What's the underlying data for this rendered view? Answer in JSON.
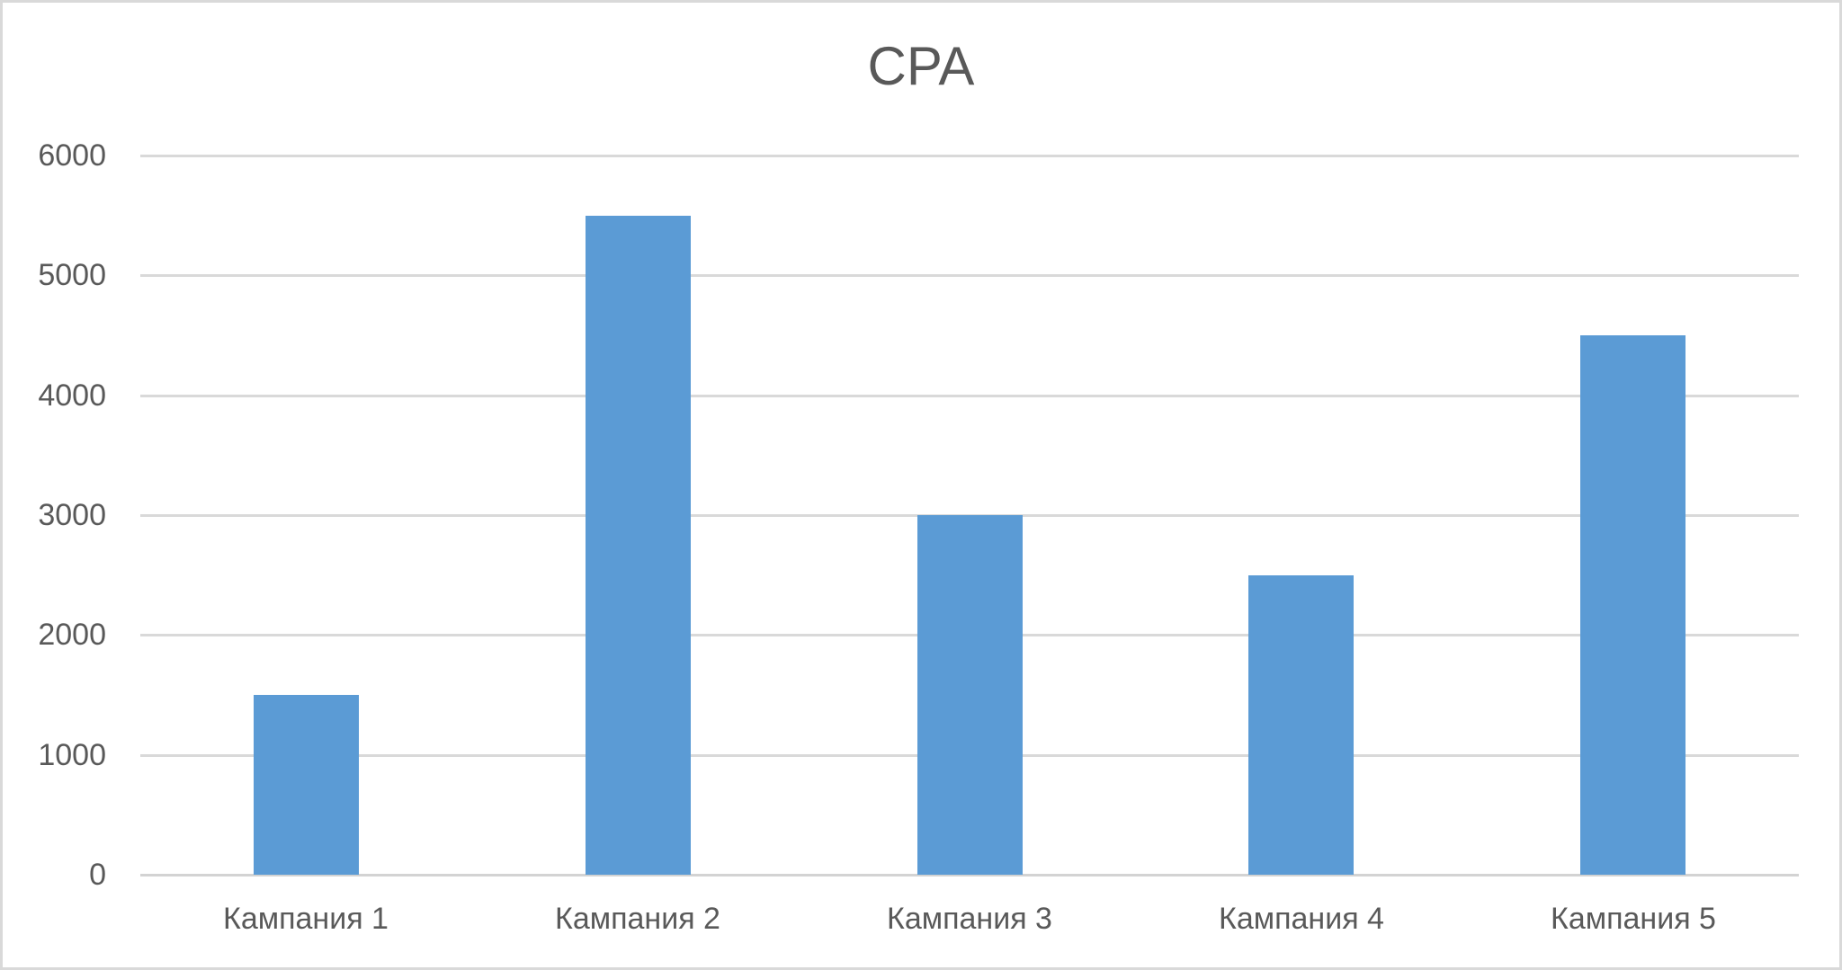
{
  "chart_data": {
    "type": "bar",
    "title": "CPA",
    "categories": [
      "Кампания 1",
      "Кампания 2",
      "Кампания 3",
      "Кампания 4",
      "Кампания 5"
    ],
    "values": [
      1500,
      5500,
      3000,
      2500,
      4500
    ],
    "xlabel": "",
    "ylabel": "",
    "ylim": [
      0,
      6000
    ],
    "yticks": [
      0,
      1000,
      2000,
      3000,
      4000,
      5000,
      6000
    ],
    "grid": true,
    "legend_position": "none",
    "colors": {
      "bar": "#5b9bd5",
      "gridline": "#d9d9d9",
      "axis_line": "#d3d3d3",
      "text": "#595959",
      "background": "#ffffff",
      "frame_border": "#d9d9d9"
    }
  }
}
